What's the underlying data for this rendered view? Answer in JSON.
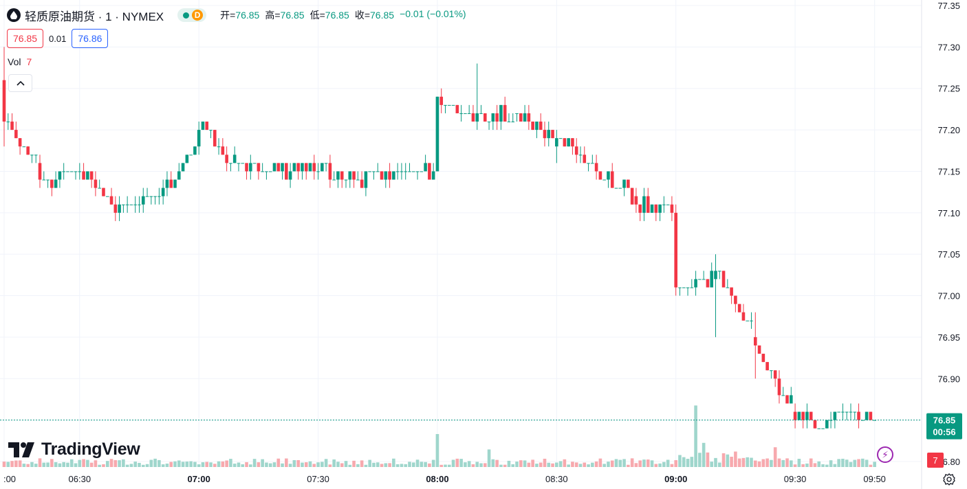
{
  "header": {
    "title": "轻质原油期货 · 1 · NYMEX",
    "status_badge": "D",
    "ohlc": [
      {
        "label": "开=",
        "value": "76.85"
      },
      {
        "label": "高=",
        "value": "76.85"
      },
      {
        "label": "低=",
        "value": "76.85"
      },
      {
        "label": "收=",
        "value": "76.85"
      },
      {
        "label": "",
        "value": "−0.01 (−0.01%)"
      }
    ]
  },
  "quote": {
    "bid": "76.85",
    "spread": "0.01",
    "ask": "76.86"
  },
  "volume": {
    "label": "Vol",
    "value": "7"
  },
  "branding": {
    "logo_text": "TradingView"
  },
  "price_tag": {
    "price": "76.85",
    "countdown": "00:56"
  },
  "volume_tag": "7",
  "colors": {
    "up": "#089981",
    "down": "#f23645",
    "up_vol": "#9fd6cc",
    "down_vol": "#f7a9ae",
    "grid": "#f0f3fa",
    "ask": "#2962ff"
  },
  "chart_data": {
    "type": "candlestick",
    "interval_minutes": 1,
    "x_range": [
      "06:11",
      "09:53"
    ],
    "ylim": [
      76.785,
      77.355
    ],
    "y_ticks": [
      "77.35",
      "77.30",
      "77.25",
      "77.20",
      "77.15",
      "77.10",
      "77.05",
      "77.00",
      "76.95",
      "76.90",
      "76.85",
      "76.80"
    ],
    "x_ticks": [
      {
        "time": "06:11",
        "label": ":00",
        "bold": false
      },
      {
        "time": "06:30",
        "label": "06:30",
        "bold": false
      },
      {
        "time": "07:00",
        "label": "07:00",
        "bold": true
      },
      {
        "time": "07:30",
        "label": "07:30",
        "bold": false
      },
      {
        "time": "08:00",
        "label": "08:00",
        "bold": true
      },
      {
        "time": "08:30",
        "label": "08:30",
        "bold": false
      },
      {
        "time": "09:00",
        "label": "09:00",
        "bold": true
      },
      {
        "time": "09:30",
        "label": "09:30",
        "bold": false
      },
      {
        "time": "09:50",
        "label": "09:50",
        "bold": false
      }
    ],
    "last_price": 76.85,
    "ohlc_points": [
      {
        "time": "06:11",
        "o": 77.26,
        "h": 77.3,
        "l": 77.18,
        "c": 77.21
      },
      {
        "time": "06:20",
        "o": 77.16,
        "h": 77.17,
        "l": 77.13,
        "c": 77.14
      },
      {
        "time": "06:30",
        "o": 77.15,
        "h": 77.16,
        "l": 77.14,
        "c": 77.15
      },
      {
        "time": "06:40",
        "o": 77.1,
        "h": 77.12,
        "l": 77.09,
        "c": 77.11
      },
      {
        "time": "06:50",
        "o": 77.12,
        "h": 77.13,
        "l": 77.11,
        "c": 77.12
      },
      {
        "time": "07:00",
        "o": 77.18,
        "h": 77.21,
        "l": 77.17,
        "c": 77.2
      },
      {
        "time": "07:10",
        "o": 77.16,
        "h": 77.16,
        "l": 77.15,
        "c": 77.16
      },
      {
        "time": "07:20",
        "o": 77.16,
        "h": 77.16,
        "l": 77.15,
        "c": 77.15
      },
      {
        "time": "07:30",
        "o": 77.15,
        "h": 77.16,
        "l": 77.14,
        "c": 77.15
      },
      {
        "time": "07:40",
        "o": 77.14,
        "h": 77.15,
        "l": 77.14,
        "c": 77.14
      },
      {
        "time": "07:50",
        "o": 77.15,
        "h": 77.16,
        "l": 77.14,
        "c": 77.15
      },
      {
        "time": "08:00",
        "o": 77.15,
        "h": 77.24,
        "l": 77.15,
        "c": 77.24
      },
      {
        "time": "08:10",
        "o": 77.21,
        "h": 77.28,
        "l": 77.2,
        "c": 77.22
      },
      {
        "time": "08:20",
        "o": 77.22,
        "h": 77.22,
        "l": 77.21,
        "c": 77.22
      },
      {
        "time": "08:30",
        "o": 77.18,
        "h": 77.2,
        "l": 77.16,
        "c": 77.19
      },
      {
        "time": "08:40",
        "o": 77.16,
        "h": 77.17,
        "l": 77.14,
        "c": 77.15
      },
      {
        "time": "08:50",
        "o": 77.12,
        "h": 77.13,
        "l": 77.1,
        "c": 77.11
      },
      {
        "time": "09:00",
        "o": 77.1,
        "h": 77.11,
        "l": 77.0,
        "c": 77.01
      },
      {
        "time": "09:10",
        "o": 77.02,
        "h": 77.05,
        "l": 76.95,
        "c": 77.03
      },
      {
        "time": "09:20",
        "o": 76.95,
        "h": 76.98,
        "l": 76.9,
        "c": 76.94
      },
      {
        "time": "09:30",
        "o": 76.86,
        "h": 76.87,
        "l": 76.84,
        "c": 76.85
      },
      {
        "time": "09:40",
        "o": 76.85,
        "h": 76.86,
        "l": 76.84,
        "c": 76.86
      },
      {
        "time": "09:50",
        "o": 76.85,
        "h": 76.85,
        "l": 76.85,
        "c": 76.85
      }
    ],
    "volume_spikes": [
      {
        "time": "08:00",
        "volume": 15
      },
      {
        "time": "08:13",
        "volume": 8
      },
      {
        "time": "09:05",
        "volume": 28
      },
      {
        "time": "09:07",
        "volume": 11
      },
      {
        "time": "09:25",
        "volume": 9
      }
    ]
  }
}
